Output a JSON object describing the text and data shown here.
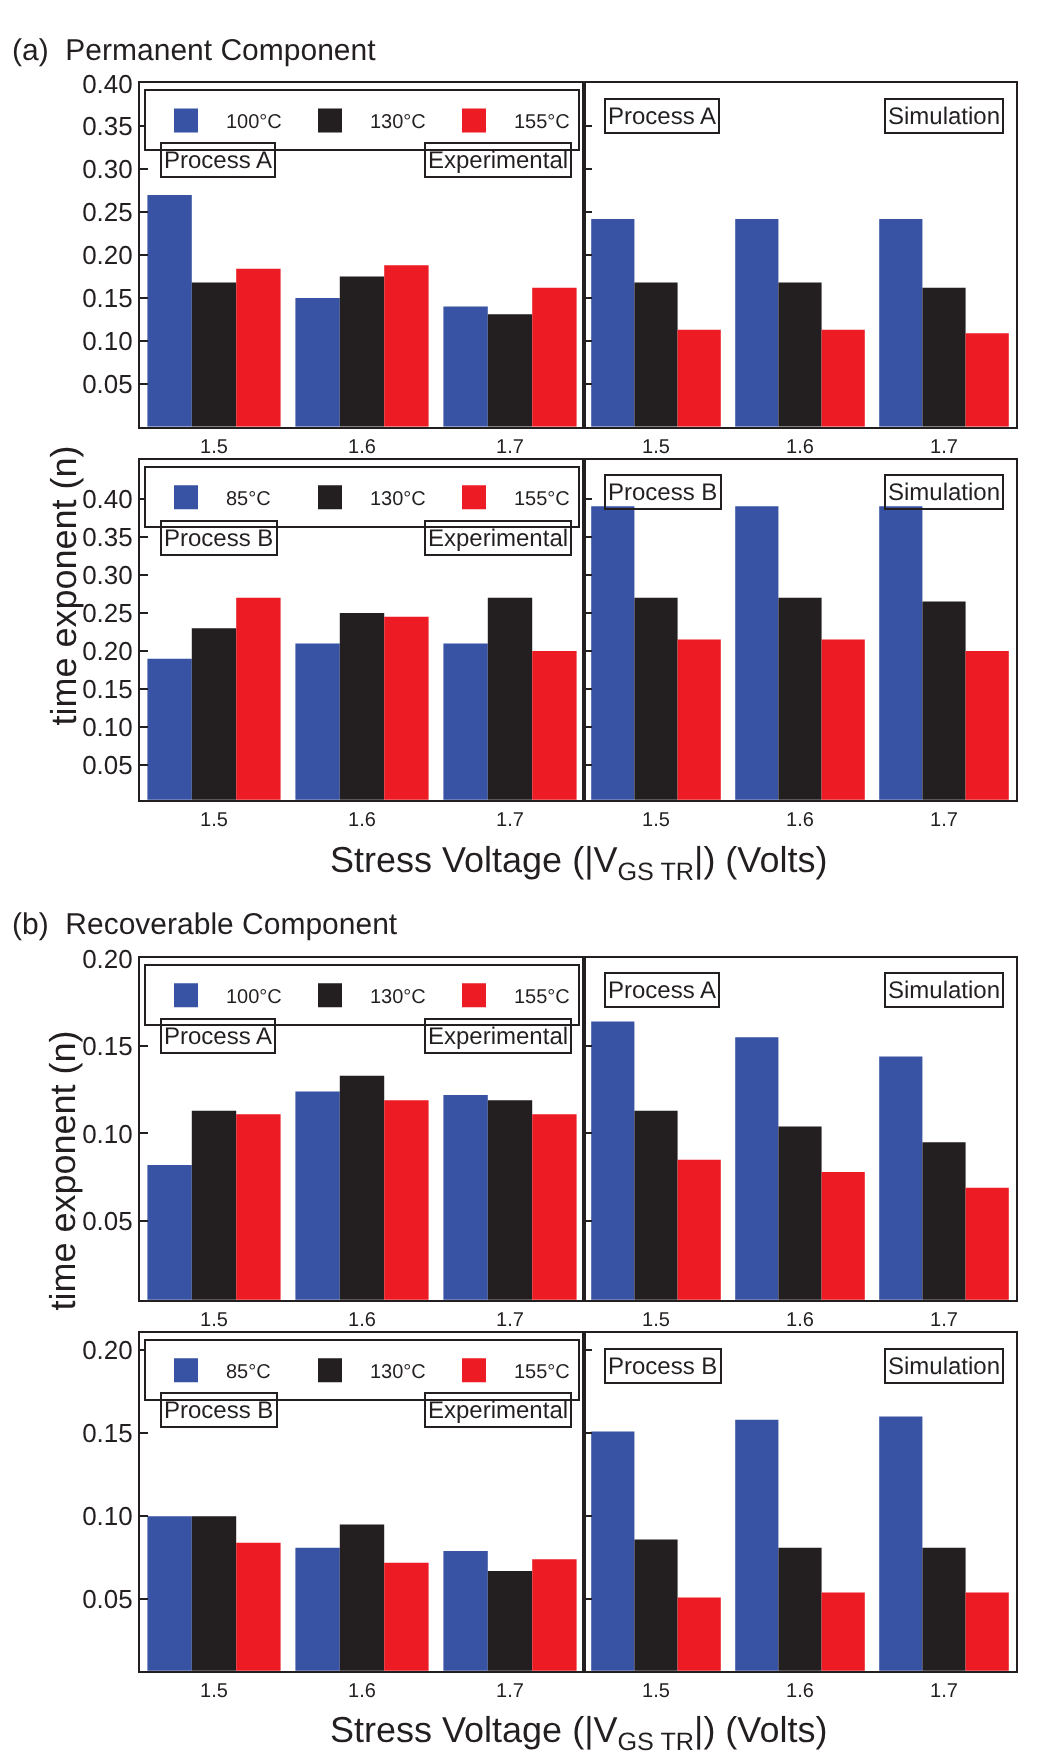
{
  "chart_data": [
    {
      "type": "bar",
      "title": "(a)  Permanent Component",
      "ylabel": "time exponent (n)",
      "categories": [
        "1.5",
        "1.6",
        "1.7"
      ],
      "ylim": [
        0,
        0.4
      ],
      "yticks": [
        {
          "value": 0.05,
          "label": "0.05"
        },
        {
          "value": 0.1,
          "label": "0.10"
        },
        {
          "value": 0.15,
          "label": "0.15"
        },
        {
          "value": 0.2,
          "label": "0.20"
        },
        {
          "value": 0.25,
          "label": "0.25"
        },
        {
          "value": 0.3,
          "label": "0.30"
        },
        {
          "value": 0.35,
          "label": "0.35"
        },
        {
          "value": 0.4,
          "label": "0.40"
        }
      ],
      "legend": "top",
      "annotations": [
        "Process A",
        "Experimental"
      ],
      "series": [
        {
          "name": "100°C",
          "color": "#3953a4",
          "values": [
            0.27,
            0.15,
            0.14
          ]
        },
        {
          "name": "130°C",
          "color": "#231f20",
          "values": [
            0.168,
            0.175,
            0.131
          ]
        },
        {
          "name": "155°C",
          "color": "#ed1c24",
          "values": [
            0.184,
            0.188,
            0.162
          ]
        }
      ]
    },
    {
      "type": "bar",
      "categories": [
        "1.5",
        "1.6",
        "1.7"
      ],
      "ylim": [
        0,
        0.4
      ],
      "yticks": [
        0.05,
        0.1,
        0.15,
        0.2,
        0.25,
        0.3,
        0.35,
        0.4
      ],
      "tick_labels": "x",
      "annotations": [
        "Process A",
        "Simulation"
      ],
      "series": [
        {
          "color": "#3953a4",
          "values": [
            0.242,
            0.242,
            0.242
          ]
        },
        {
          "color": "#231f20",
          "values": [
            0.168,
            0.168,
            0.162
          ]
        },
        {
          "color": "#ed1c24",
          "values": [
            0.113,
            0.113,
            0.109
          ]
        }
      ]
    },
    {
      "type": "bar",
      "xlabel": "Stress Voltage (|V$_{GS TR}$|) (Volts)",
      "categories": [
        "1.5",
        "1.6",
        "1.7"
      ],
      "ylim": [
        0.005,
        0.45
      ],
      "yticks": [
        {
          "value": 0.05,
          "label": "0.05"
        },
        {
          "value": 0.1,
          "label": "0.10"
        },
        {
          "value": 0.15,
          "label": "0.15"
        },
        {
          "value": 0.2,
          "label": "0.20"
        },
        {
          "value": 0.25,
          "label": "0.25"
        },
        {
          "value": 0.3,
          "label": "0.30"
        },
        {
          "value": 0.35,
          "label": "0.35"
        },
        {
          "value": 0.4,
          "label": "0.40"
        }
      ],
      "legend": "top",
      "annotations": [
        "Process B",
        "Experimental"
      ],
      "series": [
        {
          "name": "85°C",
          "color": "#3953a4",
          "values": [
            0.19,
            0.21,
            0.21
          ]
        },
        {
          "name": "130°C",
          "color": "#231f20",
          "values": [
            0.23,
            0.25,
            0.27
          ]
        },
        {
          "name": "155°C",
          "color": "#ed1c24",
          "values": [
            0.27,
            0.245,
            0.2
          ]
        }
      ]
    },
    {
      "type": "bar",
      "categories": [
        "1.5",
        "1.6",
        "1.7"
      ],
      "ylim": [
        0.005,
        0.45
      ],
      "yticks": [
        0.05,
        0.1,
        0.15,
        0.2,
        0.25,
        0.3,
        0.35,
        0.4
      ],
      "tick_labels": "x",
      "annotations": [
        "Process B",
        "Simulation"
      ],
      "series": [
        {
          "color": "#3953a4",
          "values": [
            0.39,
            0.39,
            0.39
          ]
        },
        {
          "color": "#231f20",
          "values": [
            0.27,
            0.27,
            0.265
          ]
        },
        {
          "color": "#ed1c24",
          "values": [
            0.215,
            0.215,
            0.2
          ]
        }
      ]
    },
    {
      "type": "bar",
      "title": "(b)  Recoverable Component",
      "ylabel": "time exponent (n)",
      "categories": [
        "1.5",
        "1.6",
        "1.7"
      ],
      "ylim": [
        0.005,
        0.2
      ],
      "yticks": [
        {
          "value": 0.05,
          "label": "0.05"
        },
        {
          "value": 0.1,
          "label": "0.10"
        },
        {
          "value": 0.15,
          "label": "0.15"
        },
        {
          "value": 0.2,
          "label": "0.20"
        }
      ],
      "legend": "top",
      "annotations": [
        "Process A",
        "Experimental"
      ],
      "series": [
        {
          "name": "100°C",
          "color": "#3953a4",
          "values": [
            0.082,
            0.124,
            0.122
          ]
        },
        {
          "name": "130°C",
          "color": "#231f20",
          "values": [
            0.113,
            0.133,
            0.119
          ]
        },
        {
          "name": "155°C",
          "color": "#ed1c24",
          "values": [
            0.111,
            0.119,
            0.111
          ]
        }
      ]
    },
    {
      "type": "bar",
      "categories": [
        "1.5",
        "1.6",
        "1.7"
      ],
      "ylim": [
        0.005,
        0.2
      ],
      "yticks": [
        0.05,
        0.1,
        0.15,
        0.2
      ],
      "tick_labels": "x",
      "annotations": [
        "Process A",
        "Simulation"
      ],
      "series": [
        {
          "color": "#3953a4",
          "values": [
            0.164,
            0.155,
            0.144
          ]
        },
        {
          "color": "#231f20",
          "values": [
            0.113,
            0.104,
            0.095
          ]
        },
        {
          "color": "#ed1c24",
          "values": [
            0.085,
            0.078,
            0.069
          ]
        }
      ]
    },
    {
      "type": "bar",
      "xlabel": "Stress Voltage (|V$_{GS TR}$|) (Volts)",
      "categories": [
        "1.5",
        "1.6",
        "1.7"
      ],
      "ylim": [
        0.007,
        0.21
      ],
      "yticks": [
        {
          "value": 0.05,
          "label": "0.05"
        },
        {
          "value": 0.1,
          "label": "0.10"
        },
        {
          "value": 0.15,
          "label": "0.15"
        },
        {
          "value": 0.2,
          "label": "0.20"
        }
      ],
      "legend": "top",
      "annotations": [
        "Process B",
        "Experimental"
      ],
      "series": [
        {
          "name": "85°C",
          "color": "#3953a4",
          "values": [
            0.1,
            0.081,
            0.079
          ]
        },
        {
          "name": "130°C",
          "color": "#231f20",
          "values": [
            0.1,
            0.095,
            0.067
          ]
        },
        {
          "name": "155°C",
          "color": "#ed1c24",
          "values": [
            0.084,
            0.072,
            0.074
          ]
        }
      ]
    },
    {
      "type": "bar",
      "categories": [
        "1.5",
        "1.6",
        "1.7"
      ],
      "ylim": [
        0.007,
        0.21
      ],
      "yticks": [
        0.05,
        0.1,
        0.15,
        0.2
      ],
      "tick_labels": "x",
      "annotations": [
        "Process B",
        "Simulation"
      ],
      "series": [
        {
          "color": "#3953a4",
          "values": [
            0.151,
            0.158,
            0.16
          ]
        },
        {
          "color": "#231f20",
          "values": [
            0.086,
            0.081,
            0.081
          ]
        },
        {
          "color": "#ed1c24",
          "values": [
            0.051,
            0.054,
            0.054
          ]
        }
      ]
    }
  ]
}
